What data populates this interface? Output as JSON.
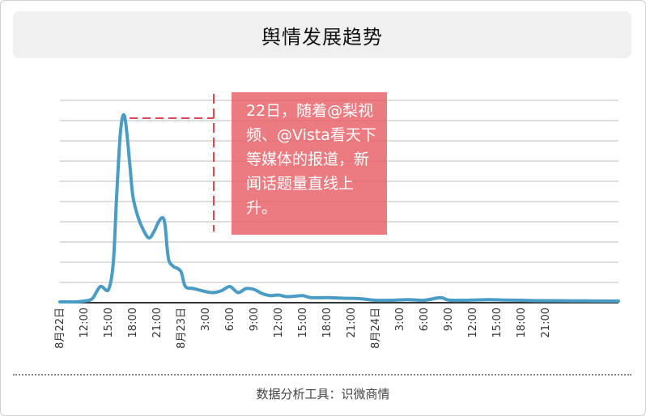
{
  "header": {
    "title": "舆情发展趋势"
  },
  "annotation": {
    "text": "22日，随着@梨视频、@Vista看天下等媒体的报道，新闻话题量直线上升。"
  },
  "footer": {
    "text": "数据分析工具：识微商情"
  },
  "colors": {
    "line": "#4a9cc4",
    "annotation_bg": "#e8646a",
    "dash": "#e0474f",
    "grid": "#bdbdbd"
  },
  "chart_data": {
    "type": "line",
    "title": "舆情发展趋势",
    "xlabel": "",
    "ylabel": "",
    "grid": true,
    "x_unit": "hours since 8月22日 0:00",
    "x_range": [
      0,
      69
    ],
    "ylim": [
      0,
      100
    ],
    "x_ticks": [
      {
        "x": 0,
        "label": "8月22日"
      },
      {
        "x": 3,
        "label": "12:00"
      },
      {
        "x": 6,
        "label": "15:00"
      },
      {
        "x": 9,
        "label": "18:00"
      },
      {
        "x": 12,
        "label": "21:00"
      },
      {
        "x": 15,
        "label": "8月23日"
      },
      {
        "x": 18,
        "label": "3:00"
      },
      {
        "x": 21,
        "label": "6:00"
      },
      {
        "x": 24,
        "label": "9:00"
      },
      {
        "x": 27,
        "label": "12:00"
      },
      {
        "x": 30,
        "label": "15:00"
      },
      {
        "x": 33,
        "label": "18:00"
      },
      {
        "x": 36,
        "label": "21:00"
      },
      {
        "x": 39,
        "label": "8月24日"
      },
      {
        "x": 42,
        "label": "3:00"
      },
      {
        "x": 45,
        "label": "6:00"
      },
      {
        "x": 48,
        "label": "9:00"
      },
      {
        "x": 51,
        "label": "12:00"
      },
      {
        "x": 54,
        "label": "15:00"
      },
      {
        "x": 57,
        "label": "18:00"
      },
      {
        "x": 60,
        "label": "21:00"
      }
    ],
    "series": [
      {
        "values": [
          [
            0,
            0.4
          ],
          [
            1,
            0.4
          ],
          [
            2,
            0.4
          ],
          [
            3,
            0.8
          ],
          [
            4,
            2
          ],
          [
            5,
            8
          ],
          [
            6,
            6.5
          ],
          [
            6.6,
            20
          ],
          [
            7,
            52
          ],
          [
            7.5,
            85
          ],
          [
            8,
            92
          ],
          [
            8.6,
            70
          ],
          [
            9,
            53
          ],
          [
            9.6,
            43
          ],
          [
            10.3,
            36
          ],
          [
            11,
            32
          ],
          [
            11.6,
            35
          ],
          [
            12.2,
            40
          ],
          [
            12.7,
            42
          ],
          [
            13,
            38
          ],
          [
            13.4,
            22
          ],
          [
            14,
            18
          ],
          [
            14.5,
            17
          ],
          [
            15,
            15
          ],
          [
            15.5,
            8
          ],
          [
            16.5,
            7
          ],
          [
            18,
            5.5
          ],
          [
            19,
            5
          ],
          [
            20,
            6
          ],
          [
            21,
            8
          ],
          [
            22,
            5
          ],
          [
            23,
            7
          ],
          [
            24,
            6.5
          ],
          [
            25,
            4.5
          ],
          [
            26,
            3.5
          ],
          [
            27,
            3.8
          ],
          [
            28,
            3
          ],
          [
            29,
            3.2
          ],
          [
            30,
            3.5
          ],
          [
            31,
            2.5
          ],
          [
            33,
            2.5
          ],
          [
            35,
            2.2
          ],
          [
            37,
            2
          ],
          [
            39,
            1.2
          ],
          [
            41,
            1.2
          ],
          [
            43,
            1.5
          ],
          [
            45,
            1.2
          ],
          [
            47,
            2.5
          ],
          [
            48,
            1.3
          ],
          [
            50,
            1.2
          ],
          [
            53,
            1.5
          ],
          [
            55,
            1.3
          ],
          [
            57,
            1.2
          ],
          [
            59,
            1.0
          ],
          [
            61,
            1.0
          ],
          [
            63,
            0.9
          ],
          [
            65,
            0.9
          ],
          [
            67,
            0.8
          ],
          [
            69,
            0.8
          ]
        ]
      }
    ]
  }
}
